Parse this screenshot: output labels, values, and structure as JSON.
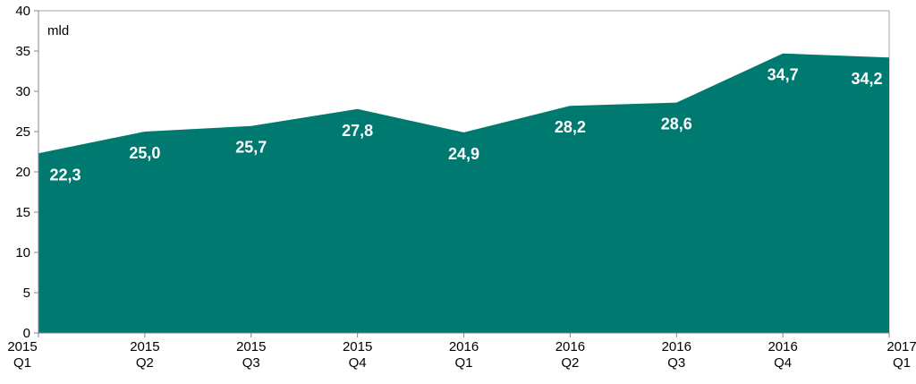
{
  "chart_data": {
    "type": "area",
    "unit_label": "mld",
    "categories": [
      [
        "2015",
        "Q1"
      ],
      [
        "2015",
        "Q2"
      ],
      [
        "2015",
        "Q3"
      ],
      [
        "2015",
        "Q4"
      ],
      [
        "2016",
        "Q1"
      ],
      [
        "2016",
        "Q2"
      ],
      [
        "2016",
        "Q3"
      ],
      [
        "2016",
        "Q4"
      ],
      [
        "2017",
        "Q1"
      ]
    ],
    "values": [
      22.3,
      25.0,
      25.7,
      27.8,
      24.9,
      28.2,
      28.6,
      34.7,
      34.2
    ],
    "data_labels": [
      "22,3",
      "25,0",
      "25,7",
      "27,8",
      "24,9",
      "28,2",
      "28,6",
      "34,7",
      "34,2"
    ],
    "ylim": [
      0,
      40
    ],
    "yticks": [
      0,
      5,
      10,
      15,
      20,
      25,
      30,
      35,
      40
    ],
    "grid": false,
    "fill_color": "#007A70"
  }
}
